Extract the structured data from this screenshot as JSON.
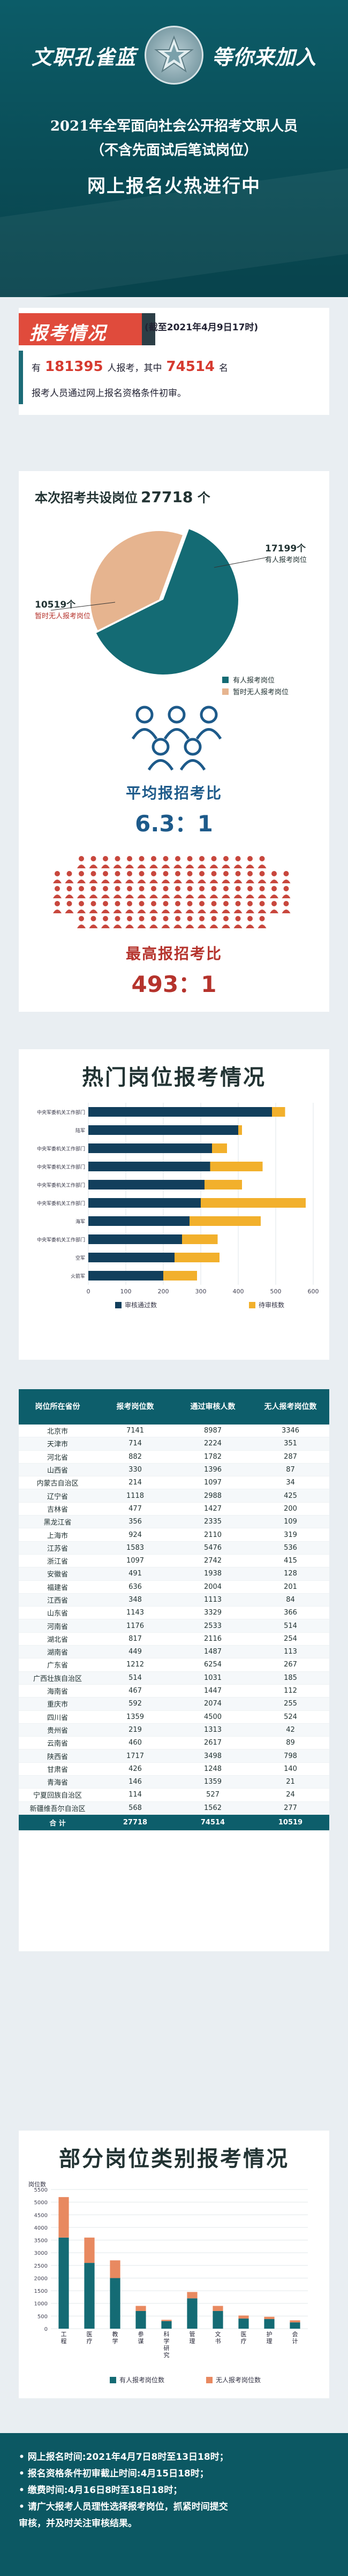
{
  "header": {
    "slogan_left": "文职孔雀蓝",
    "slogan_right": "等你来加入",
    "line1": "2021年全军面向社会公开招考文职人员",
    "line2": "（不含先面试后笔试岗位）",
    "line3": "网上报名火热进行中"
  },
  "status": {
    "tag": "报考情况",
    "date": "(截至2021年4月9日17时)",
    "prefix": "有",
    "registered": "181395",
    "mid": "人报考，其中",
    "passed": "74514",
    "suffix": "名",
    "line2": "报考人员通过网上报名资格条件初审。"
  },
  "posts": {
    "title_prefix": "本次招考共设岗位",
    "total": "27718",
    "unit": "个",
    "pie_has": "17199个",
    "pie_has_label": "有人报考岗位",
    "pie_none": "10519个",
    "pie_none_label": "暂时无人报考岗位",
    "legend": [
      "有人报考岗位",
      "暂时无人报考岗位"
    ],
    "colors": {
      "has": "#146b74",
      "none": "#e6b48f"
    },
    "avg_title": "平均报招考比",
    "avg_value": "6.3：1",
    "max_title": "最高报招考比",
    "max_value": "493：1"
  },
  "hot": {
    "title": "热门岗位报考情况",
    "legend_passed": "审核通过数",
    "legend_pending": "待审核数",
    "rows": [
      {
        "label": "中央军委机关工作部门",
        "passed": 490,
        "pending": 35
      },
      {
        "label": "陆军",
        "passed": 400,
        "pending": 10
      },
      {
        "label": "中央军委机关工作部门",
        "passed": 330,
        "pending": 40
      },
      {
        "label": "中央军委机关工作部门",
        "passed": 325,
        "pending": 140
      },
      {
        "label": "中央军委机关工作部门",
        "passed": 310,
        "pending": 100
      },
      {
        "label": "中央军委机关工作部门",
        "passed": 300,
        "pending": 280
      },
      {
        "label": "海军",
        "passed": 270,
        "pending": 190
      },
      {
        "label": "中央军委机关工作部门",
        "passed": 250,
        "pending": 95
      },
      {
        "label": "空军",
        "passed": 230,
        "pending": 120
      },
      {
        "label": "火箭军",
        "passed": 200,
        "pending": 90
      }
    ],
    "xticks": [
      "0",
      "100",
      "200",
      "300",
      "400",
      "500",
      "600"
    ],
    "colors": {
      "passed": "#123f5c",
      "pending": "#f2b02c"
    }
  },
  "table": {
    "headers": [
      "岗位所在省份",
      "报考岗位数",
      "通过审核人数",
      "无人报考岗位数"
    ],
    "rows": [
      [
        "北京市",
        "7141",
        "8987",
        "3346"
      ],
      [
        "天津市",
        "714",
        "2224",
        "351"
      ],
      [
        "河北省",
        "882",
        "1782",
        "287"
      ],
      [
        "山西省",
        "330",
        "1396",
        "87"
      ],
      [
        "内蒙古自治区",
        "214",
        "1097",
        "34"
      ],
      [
        "辽宁省",
        "1118",
        "2988",
        "425"
      ],
      [
        "吉林省",
        "477",
        "1427",
        "200"
      ],
      [
        "黑龙江省",
        "356",
        "2335",
        "109"
      ],
      [
        "上海市",
        "924",
        "2110",
        "319"
      ],
      [
        "江苏省",
        "1583",
        "5476",
        "536"
      ],
      [
        "浙江省",
        "1097",
        "2742",
        "415"
      ],
      [
        "安徽省",
        "491",
        "1938",
        "128"
      ],
      [
        "福建省",
        "636",
        "2004",
        "201"
      ],
      [
        "江西省",
        "348",
        "1113",
        "84"
      ],
      [
        "山东省",
        "1143",
        "3329",
        "366"
      ],
      [
        "河南省",
        "1176",
        "2533",
        "514"
      ],
      [
        "湖北省",
        "817",
        "2116",
        "254"
      ],
      [
        "湖南省",
        "449",
        "1487",
        "113"
      ],
      [
        "广东省",
        "1212",
        "6254",
        "267"
      ],
      [
        "广西壮族自治区",
        "514",
        "1031",
        "185"
      ],
      [
        "海南省",
        "467",
        "1447",
        "112"
      ],
      [
        "重庆市",
        "592",
        "2074",
        "255"
      ],
      [
        "四川省",
        "1359",
        "4500",
        "524"
      ],
      [
        "贵州省",
        "219",
        "1313",
        "42"
      ],
      [
        "云南省",
        "460",
        "2617",
        "89"
      ],
      [
        "陕西省",
        "1717",
        "3498",
        "798"
      ],
      [
        "甘肃省",
        "426",
        "1248",
        "140"
      ],
      [
        "青海省",
        "146",
        "1359",
        "21"
      ],
      [
        "宁夏回族自治区",
        "114",
        "527",
        "24"
      ],
      [
        "新疆维吾尔自治区",
        "568",
        "1562",
        "277"
      ]
    ],
    "total": [
      "合 计",
      "27718",
      "74514",
      "10519"
    ]
  },
  "category": {
    "title": "部分岗位类别报考情况",
    "ylabel": "岗位数",
    "legend_has": "有人报考岗位数",
    "legend_none": "无人报考岗位数",
    "categories": [
      "工程",
      "医疗",
      "教学",
      "参谋",
      "科学研究",
      "管理",
      "文书",
      "医疗",
      "护理",
      "会计"
    ],
    "has": [
      3600,
      2600,
      2000,
      700,
      300,
      1200,
      700,
      400,
      380,
      250
    ],
    "none": [
      1600,
      1000,
      700,
      200,
      50,
      250,
      200,
      120,
      90,
      80
    ],
    "yticks": [
      "0",
      "500",
      "1000",
      "1500",
      "2000",
      "2500",
      "3000",
      "3500",
      "4000",
      "4500",
      "5000",
      "5500"
    ],
    "colors": {
      "has": "#146b74",
      "none": "#e88960"
    }
  },
  "notes": [
    "• 网上报名时间:2021年4月7日8时至13日18时；",
    "• 报名资格条件初审截止时间:4月15日18时；",
    "• 缴费时间:4月16日8时至18日18时；",
    "• 请广大报考人员理性选择报考岗位，抓紧时间提交",
    "  审核，并及时关注审核结果。"
  ]
}
